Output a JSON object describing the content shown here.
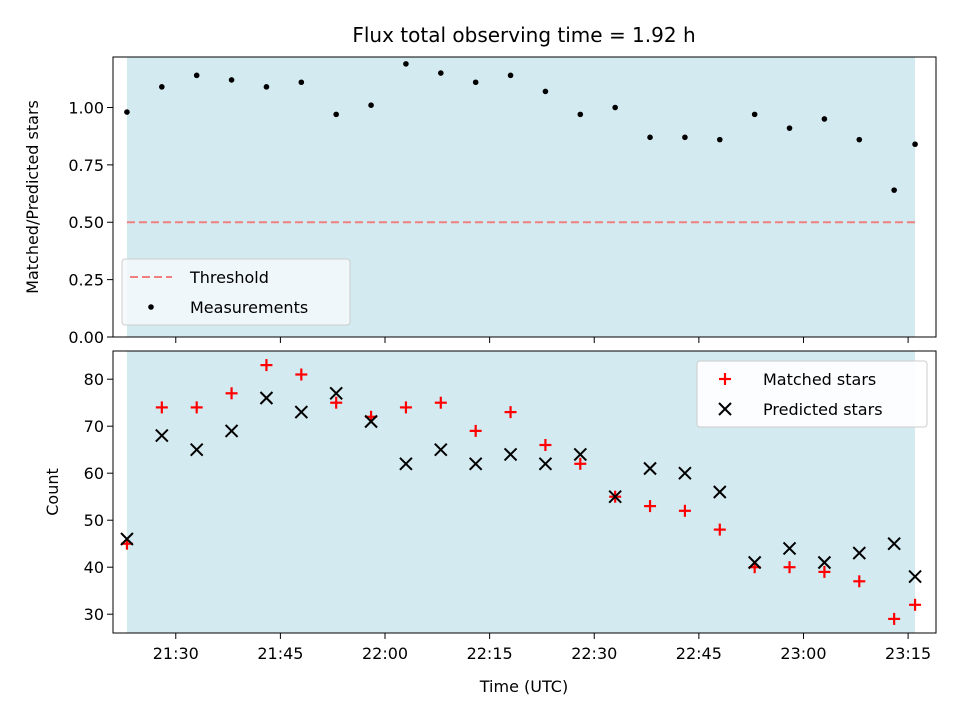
{
  "chart_data": [
    {
      "type": "scatter",
      "title": "Flux total observing time = 1.92 h",
      "xlabel": "",
      "ylabel": "Matched/Predicted stars",
      "xlim": [
        "21:21",
        "23:19"
      ],
      "ylim": [
        0,
        1.22
      ],
      "yticks": [
        "0.00",
        "0.25",
        "0.50",
        "0.75",
        "1.00"
      ],
      "shaded_range": [
        "21:23",
        "23:16"
      ],
      "legend_position": "lower-left",
      "threshold": {
        "name": "Threshold",
        "value": 0.5
      },
      "series": [
        {
          "name": "Measurements",
          "x": [
            "21:23",
            "21:28",
            "21:33",
            "21:38",
            "21:43",
            "21:48",
            "21:53",
            "21:58",
            "22:03",
            "22:08",
            "22:13",
            "22:18",
            "22:23",
            "22:28",
            "22:33",
            "22:38",
            "22:43",
            "22:48",
            "22:53",
            "22:58",
            "23:03",
            "23:08",
            "23:13",
            "23:16"
          ],
          "values": [
            0.98,
            1.09,
            1.14,
            1.12,
            1.09,
            1.11,
            0.97,
            1.01,
            1.19,
            1.15,
            1.11,
            1.14,
            1.07,
            0.97,
            1.0,
            0.87,
            0.87,
            0.86,
            0.97,
            0.91,
            0.95,
            0.86,
            0.64,
            0.84
          ]
        }
      ]
    },
    {
      "type": "scatter",
      "title": "",
      "xlabel": "Time (UTC)",
      "ylabel": "Count",
      "xlim": [
        "21:21",
        "23:19"
      ],
      "ylim": [
        26,
        86
      ],
      "xticks": [
        "21:30",
        "21:45",
        "22:00",
        "22:15",
        "22:30",
        "22:45",
        "23:00",
        "23:15"
      ],
      "yticks": [
        "30",
        "40",
        "50",
        "60",
        "70",
        "80"
      ],
      "shaded_range": [
        "21:23",
        "23:16"
      ],
      "legend_position": "upper-right",
      "series": [
        {
          "name": "Matched stars",
          "x": [
            "21:23",
            "21:28",
            "21:33",
            "21:38",
            "21:43",
            "21:48",
            "21:53",
            "21:58",
            "22:03",
            "22:08",
            "22:13",
            "22:18",
            "22:23",
            "22:28",
            "22:33",
            "22:38",
            "22:43",
            "22:48",
            "22:53",
            "22:58",
            "23:03",
            "23:08",
            "23:13",
            "23:16"
          ],
          "values": [
            45,
            74,
            74,
            77,
            83,
            81,
            75,
            72,
            74,
            75,
            69,
            73,
            66,
            62,
            55,
            53,
            52,
            48,
            40,
            40,
            39,
            37,
            29,
            32
          ]
        },
        {
          "name": "Predicted stars",
          "x": [
            "21:23",
            "21:28",
            "21:33",
            "21:38",
            "21:43",
            "21:48",
            "21:53",
            "21:58",
            "22:03",
            "22:08",
            "22:13",
            "22:18",
            "22:23",
            "22:28",
            "22:33",
            "22:38",
            "22:43",
            "22:48",
            "22:53",
            "22:58",
            "23:03",
            "23:08",
            "23:13",
            "23:16"
          ],
          "values": [
            46,
            68,
            65,
            69,
            76,
            73,
            77,
            71,
            62,
            65,
            62,
            64,
            62,
            64,
            55,
            61,
            60,
            56,
            41,
            44,
            41,
            43,
            45,
            38
          ]
        }
      ]
    }
  ],
  "colors": {
    "shade": "#d4eaf1",
    "threshold": "#f08080",
    "measurements": "#000000",
    "matched": "#ff0000",
    "predicted": "#000000"
  }
}
